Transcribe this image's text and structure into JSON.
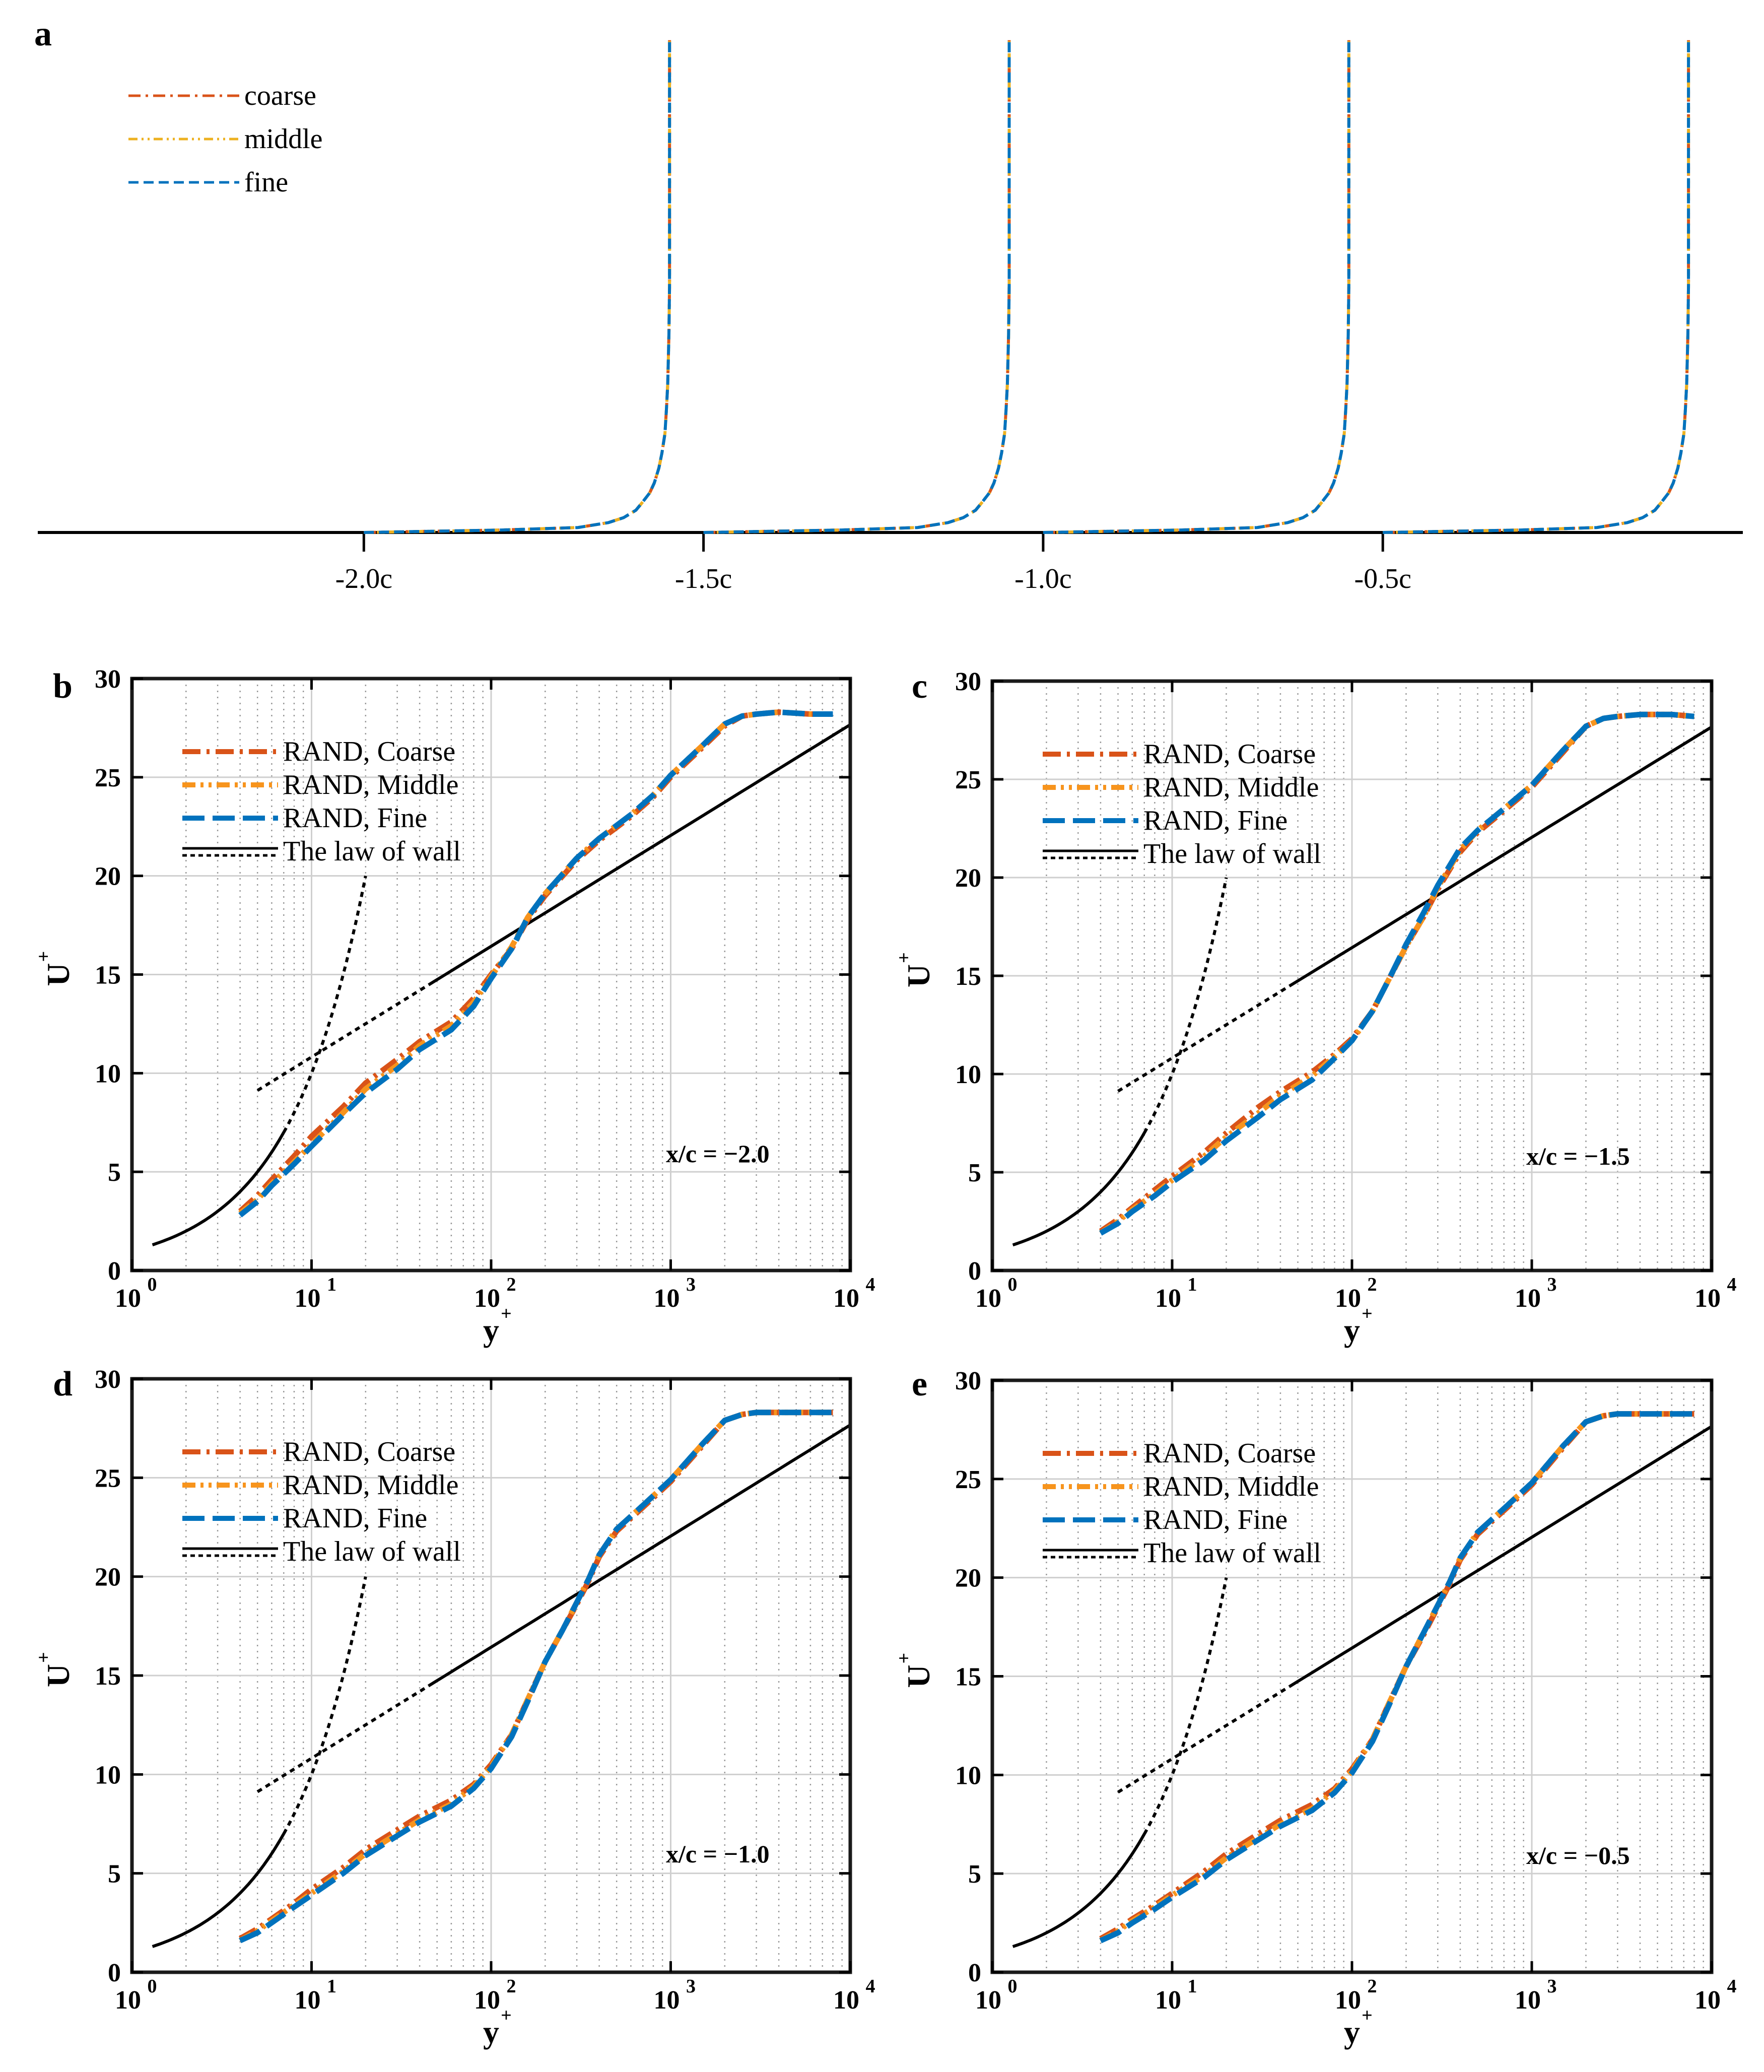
{
  "chart_data": [
    {
      "panel": "a",
      "type": "line",
      "title": "",
      "xlabel": "",
      "ylabel": "",
      "xlim": [
        -2.48,
        0.03
      ],
      "categories": [
        "-2.0c",
        "-1.5c",
        "-1.0c",
        "-0.5c"
      ],
      "x_ticks": [
        -2.0,
        -1.5,
        -1.0,
        -0.5
      ],
      "profile_scale": 0.45,
      "profile_eta": [
        0,
        0.005,
        0.01,
        0.02,
        0.03,
        0.045,
        0.06,
        0.08,
        0.1,
        0.13,
        0.16,
        0.2,
        0.25,
        0.3,
        0.35,
        0.4,
        0.45,
        0.5,
        0.6,
        0.7,
        0.8,
        0.9,
        1.0
      ],
      "profile_u": [
        0,
        0.45,
        0.7,
        0.8,
        0.85,
        0.89,
        0.91,
        0.935,
        0.95,
        0.965,
        0.975,
        0.985,
        0.99,
        0.994,
        0.996,
        0.998,
        0.999,
        1.0,
        1.0,
        1.0,
        1.0,
        1.0,
        1.0
      ],
      "series": [
        {
          "name": "coarse",
          "color": "#d95319"
        },
        {
          "name": "middle",
          "color": "#edb120"
        },
        {
          "name": "fine",
          "color": "#0072bd"
        }
      ],
      "legend": [
        "coarse",
        "middle",
        "fine"
      ],
      "legend_position": "top-left"
    },
    {
      "panel": "b",
      "type": "line",
      "xlabel": "y",
      "xlabel_sup": "+",
      "ylabel": "U",
      "ylabel_sup": "+",
      "xscale": "log",
      "xlim": [
        1,
        10000
      ],
      "ylim": [
        0,
        30
      ],
      "yticks": [
        0,
        5,
        10,
        15,
        20,
        25,
        30
      ],
      "xtick_base": "10",
      "xtick_exps": [
        "0",
        "1",
        "2",
        "3",
        "4"
      ],
      "annotation": "x/c = −2.0",
      "legend": [
        "RAND, Coarse",
        "RAND, Middle",
        "RAND, Fine",
        "The law of wall"
      ],
      "legend_position": "top-left",
      "grid": true,
      "series": [
        {
          "name": "RAND, Coarse",
          "color": "#d95319",
          "x": [
            4,
            5,
            6,
            8,
            10,
            15,
            20,
            30,
            40,
            60,
            80,
            100,
            130,
            160,
            200,
            300,
            400,
            600,
            800,
            1000,
            1500,
            2000,
            2500,
            3000,
            4000,
            6000,
            8000
          ],
          "y": [
            3.0,
            3.8,
            4.6,
            5.8,
            6.8,
            8.3,
            9.5,
            10.7,
            11.6,
            12.6,
            13.8,
            15.0,
            16.3,
            17.8,
            19.0,
            20.8,
            21.8,
            23.0,
            24.0,
            25.0,
            26.5,
            27.6,
            28.1,
            28.2,
            28.3,
            28.2,
            28.2
          ]
        },
        {
          "name": "RAND, Middle",
          "color": "#f7941d",
          "x": [
            4,
            5,
            6,
            8,
            10,
            15,
            20,
            30,
            40,
            60,
            80,
            100,
            130,
            160,
            200,
            300,
            400,
            600,
            800,
            1000,
            1500,
            2000,
            2500,
            3000,
            4000,
            6000,
            8000
          ],
          "y": [
            2.9,
            3.6,
            4.4,
            5.5,
            6.4,
            8.0,
            9.2,
            10.4,
            11.4,
            12.4,
            13.6,
            14.9,
            16.4,
            17.9,
            19.1,
            20.9,
            21.9,
            23.1,
            24.1,
            25.1,
            26.6,
            27.7,
            28.1,
            28.2,
            28.3,
            28.2,
            28.2
          ]
        },
        {
          "name": "RAND, Fine",
          "color": "#0072bd",
          "x": [
            4,
            5,
            6,
            8,
            10,
            15,
            20,
            30,
            40,
            60,
            80,
            100,
            130,
            160,
            200,
            300,
            400,
            600,
            800,
            1000,
            1500,
            2000,
            2500,
            3000,
            4000,
            6000,
            8000
          ],
          "y": [
            2.8,
            3.5,
            4.3,
            5.4,
            6.3,
            7.9,
            9.0,
            10.2,
            11.2,
            12.2,
            13.4,
            14.8,
            16.3,
            17.9,
            19.1,
            20.9,
            21.9,
            23.1,
            24.1,
            25.1,
            26.6,
            27.7,
            28.1,
            28.2,
            28.3,
            28.2,
            28.2
          ]
        }
      ]
    },
    {
      "panel": "c",
      "type": "line",
      "xlabel": "y",
      "xlabel_sup": "+",
      "ylabel": "U",
      "ylabel_sup": "+",
      "xscale": "log",
      "xlim": [
        1,
        10000
      ],
      "ylim": [
        0,
        30
      ],
      "yticks": [
        0,
        5,
        10,
        15,
        20,
        25,
        30
      ],
      "xtick_base": "10",
      "xtick_exps": [
        "0",
        "1",
        "2",
        "3",
        "4"
      ],
      "annotation": "x/c = −1.5",
      "legend": [
        "RAND, Coarse",
        "RAND, Middle",
        "RAND, Fine",
        "The law of wall"
      ],
      "legend_position": "top-left",
      "grid": true,
      "series": [
        {
          "name": "RAND, Coarse",
          "color": "#d95319",
          "x": [
            4,
            5,
            6,
            8,
            10,
            15,
            20,
            30,
            40,
            60,
            80,
            100,
            130,
            160,
            200,
            250,
            300,
            400,
            500,
            700,
            1000,
            1500,
            2000,
            2500,
            3000,
            4000,
            6000,
            8000
          ],
          "y": [
            2.0,
            2.6,
            3.2,
            4.1,
            4.8,
            6.0,
            7.0,
            8.3,
            9.1,
            10.1,
            11.0,
            11.8,
            13.2,
            14.8,
            16.5,
            18.0,
            19.4,
            21.3,
            22.3,
            23.4,
            24.6,
            26.4,
            27.7,
            28.1,
            28.2,
            28.3,
            28.3,
            28.2
          ]
        },
        {
          "name": "RAND, Middle",
          "color": "#f7941d",
          "x": [
            4,
            5,
            6,
            8,
            10,
            15,
            20,
            30,
            40,
            60,
            80,
            100,
            130,
            160,
            200,
            250,
            300,
            400,
            500,
            700,
            1000,
            1500,
            2000,
            2500,
            3000,
            4000,
            6000,
            8000
          ],
          "y": [
            1.9,
            2.5,
            3.1,
            3.9,
            4.6,
            5.8,
            6.8,
            8.0,
            8.9,
            9.9,
            10.9,
            11.7,
            13.2,
            14.8,
            16.5,
            18.0,
            19.5,
            21.4,
            22.4,
            23.5,
            24.7,
            26.5,
            27.7,
            28.1,
            28.2,
            28.3,
            28.3,
            28.2
          ]
        },
        {
          "name": "RAND, Fine",
          "color": "#0072bd",
          "x": [
            4,
            5,
            6,
            8,
            10,
            15,
            20,
            30,
            40,
            60,
            80,
            100,
            130,
            160,
            200,
            250,
            300,
            400,
            500,
            700,
            1000,
            1500,
            2000,
            2500,
            3000,
            4000,
            6000,
            8000
          ],
          "y": [
            1.9,
            2.4,
            3.0,
            3.8,
            4.5,
            5.6,
            6.6,
            7.8,
            8.7,
            9.7,
            10.8,
            11.7,
            13.2,
            14.8,
            16.6,
            18.2,
            19.6,
            21.5,
            22.4,
            23.5,
            24.7,
            26.5,
            27.7,
            28.1,
            28.2,
            28.3,
            28.3,
            28.2
          ]
        }
      ]
    },
    {
      "panel": "d",
      "type": "line",
      "xlabel": "y",
      "xlabel_sup": "+",
      "ylabel": "U",
      "ylabel_sup": "+",
      "xscale": "log",
      "xlim": [
        1,
        10000
      ],
      "ylim": [
        0,
        30
      ],
      "yticks": [
        0,
        5,
        10,
        15,
        20,
        25,
        30
      ],
      "xtick_base": "10",
      "xtick_exps": [
        "0",
        "1",
        "2",
        "3",
        "4"
      ],
      "annotation": "x/c = −1.0",
      "legend": [
        "RAND, Coarse",
        "RAND, Middle",
        "RAND, Fine",
        "The law of wall"
      ],
      "legend_position": "top-left",
      "grid": true,
      "series": [
        {
          "name": "RAND, Coarse",
          "color": "#d95319",
          "x": [
            4,
            5,
            6,
            8,
            10,
            15,
            20,
            30,
            40,
            60,
            80,
            100,
            130,
            160,
            200,
            250,
            300,
            350,
            400,
            500,
            700,
            1000,
            1500,
            2000,
            2500,
            3000,
            4000,
            6000,
            8000
          ],
          "y": [
            1.7,
            2.2,
            2.7,
            3.5,
            4.2,
            5.3,
            6.2,
            7.2,
            7.9,
            8.7,
            9.5,
            10.5,
            12.0,
            13.8,
            15.7,
            17.3,
            18.6,
            19.8,
            21.0,
            22.3,
            23.5,
            24.8,
            26.6,
            27.9,
            28.2,
            28.3,
            28.3,
            28.3,
            28.3
          ]
        },
        {
          "name": "RAND, Middle",
          "color": "#f7941d",
          "x": [
            4,
            5,
            6,
            8,
            10,
            15,
            20,
            30,
            40,
            60,
            80,
            100,
            130,
            160,
            200,
            250,
            300,
            350,
            400,
            500,
            700,
            1000,
            1500,
            2000,
            2500,
            3000,
            4000,
            6000,
            8000
          ],
          "y": [
            1.6,
            2.1,
            2.6,
            3.4,
            4.0,
            5.1,
            6.0,
            7.0,
            7.7,
            8.5,
            9.4,
            10.4,
            12.0,
            13.8,
            15.7,
            17.3,
            18.7,
            19.9,
            21.1,
            22.4,
            23.6,
            24.9,
            26.7,
            27.9,
            28.2,
            28.3,
            28.3,
            28.3,
            28.3
          ]
        },
        {
          "name": "RAND, Fine",
          "color": "#0072bd",
          "x": [
            4,
            5,
            6,
            8,
            10,
            15,
            20,
            30,
            40,
            60,
            80,
            100,
            130,
            160,
            200,
            250,
            300,
            350,
            400,
            500,
            700,
            1000,
            1500,
            2000,
            2500,
            3000,
            4000,
            6000,
            8000
          ],
          "y": [
            1.6,
            2.0,
            2.5,
            3.3,
            3.9,
            5.0,
            5.9,
            6.9,
            7.6,
            8.4,
            9.3,
            10.3,
            11.9,
            13.7,
            15.7,
            17.3,
            18.7,
            19.9,
            21.1,
            22.4,
            23.6,
            24.9,
            26.7,
            27.9,
            28.2,
            28.3,
            28.3,
            28.3,
            28.3
          ]
        }
      ]
    },
    {
      "panel": "e",
      "type": "line",
      "xlabel": "y",
      "xlabel_sup": "+",
      "ylabel": "U",
      "ylabel_sup": "+",
      "xscale": "log",
      "xlim": [
        1,
        10000
      ],
      "ylim": [
        0,
        30
      ],
      "yticks": [
        0,
        5,
        10,
        15,
        20,
        25,
        30
      ],
      "xtick_base": "10",
      "xtick_exps": [
        "0",
        "1",
        "2",
        "3",
        "4"
      ],
      "annotation": "x/c = −0.5",
      "legend": [
        "RAND, Coarse",
        "RAND, Middle",
        "RAND, Fine",
        "The law of wall"
      ],
      "legend_position": "top-left",
      "grid": true,
      "series": [
        {
          "name": "RAND, Coarse",
          "color": "#d95319",
          "x": [
            4,
            5,
            6,
            8,
            10,
            15,
            20,
            30,
            40,
            60,
            80,
            100,
            130,
            160,
            200,
            250,
            300,
            350,
            400,
            500,
            700,
            1000,
            1500,
            2000,
            2500,
            3000,
            4000,
            6000,
            8000
          ],
          "y": [
            1.7,
            2.2,
            2.7,
            3.4,
            4.0,
            5.1,
            6.0,
            7.0,
            7.7,
            8.5,
            9.3,
            10.3,
            11.8,
            13.6,
            15.5,
            17.1,
            18.5,
            19.7,
            20.9,
            22.2,
            23.4,
            24.7,
            26.6,
            27.9,
            28.2,
            28.3,
            28.3,
            28.3,
            28.3
          ]
        },
        {
          "name": "RAND, Middle",
          "color": "#f7941d",
          "x": [
            4,
            5,
            6,
            8,
            10,
            15,
            20,
            30,
            40,
            60,
            80,
            100,
            130,
            160,
            200,
            250,
            300,
            350,
            400,
            500,
            700,
            1000,
            1500,
            2000,
            2500,
            3000,
            4000,
            6000,
            8000
          ],
          "y": [
            1.6,
            2.1,
            2.6,
            3.3,
            3.9,
            4.9,
            5.8,
            6.8,
            7.5,
            8.3,
            9.2,
            10.2,
            11.8,
            13.6,
            15.5,
            17.2,
            18.6,
            19.8,
            21.0,
            22.3,
            23.5,
            24.8,
            26.7,
            27.9,
            28.2,
            28.3,
            28.3,
            28.3,
            28.3
          ]
        },
        {
          "name": "RAND, Fine",
          "color": "#0072bd",
          "x": [
            4,
            5,
            6,
            8,
            10,
            15,
            20,
            30,
            40,
            60,
            80,
            100,
            130,
            160,
            200,
            250,
            300,
            350,
            400,
            500,
            700,
            1000,
            1500,
            2000,
            2500,
            3000,
            4000,
            6000,
            8000
          ],
          "y": [
            1.6,
            2.0,
            2.5,
            3.2,
            3.8,
            4.8,
            5.7,
            6.7,
            7.4,
            8.2,
            9.1,
            10.1,
            11.7,
            13.5,
            15.5,
            17.2,
            18.6,
            19.8,
            21.0,
            22.3,
            23.5,
            24.8,
            26.7,
            27.9,
            28.2,
            28.3,
            28.3,
            28.3,
            28.3
          ]
        }
      ]
    }
  ],
  "law_of_wall": {
    "viscous_solid_x": [
      1.3,
      7
    ],
    "viscous_dotted_x": [
      7,
      20
    ],
    "log_dotted_x": [
      5,
      45
    ],
    "log_solid_x": [
      45,
      10000
    ],
    "kappa": 0.41,
    "B": 5.2,
    "color": "#000000"
  }
}
